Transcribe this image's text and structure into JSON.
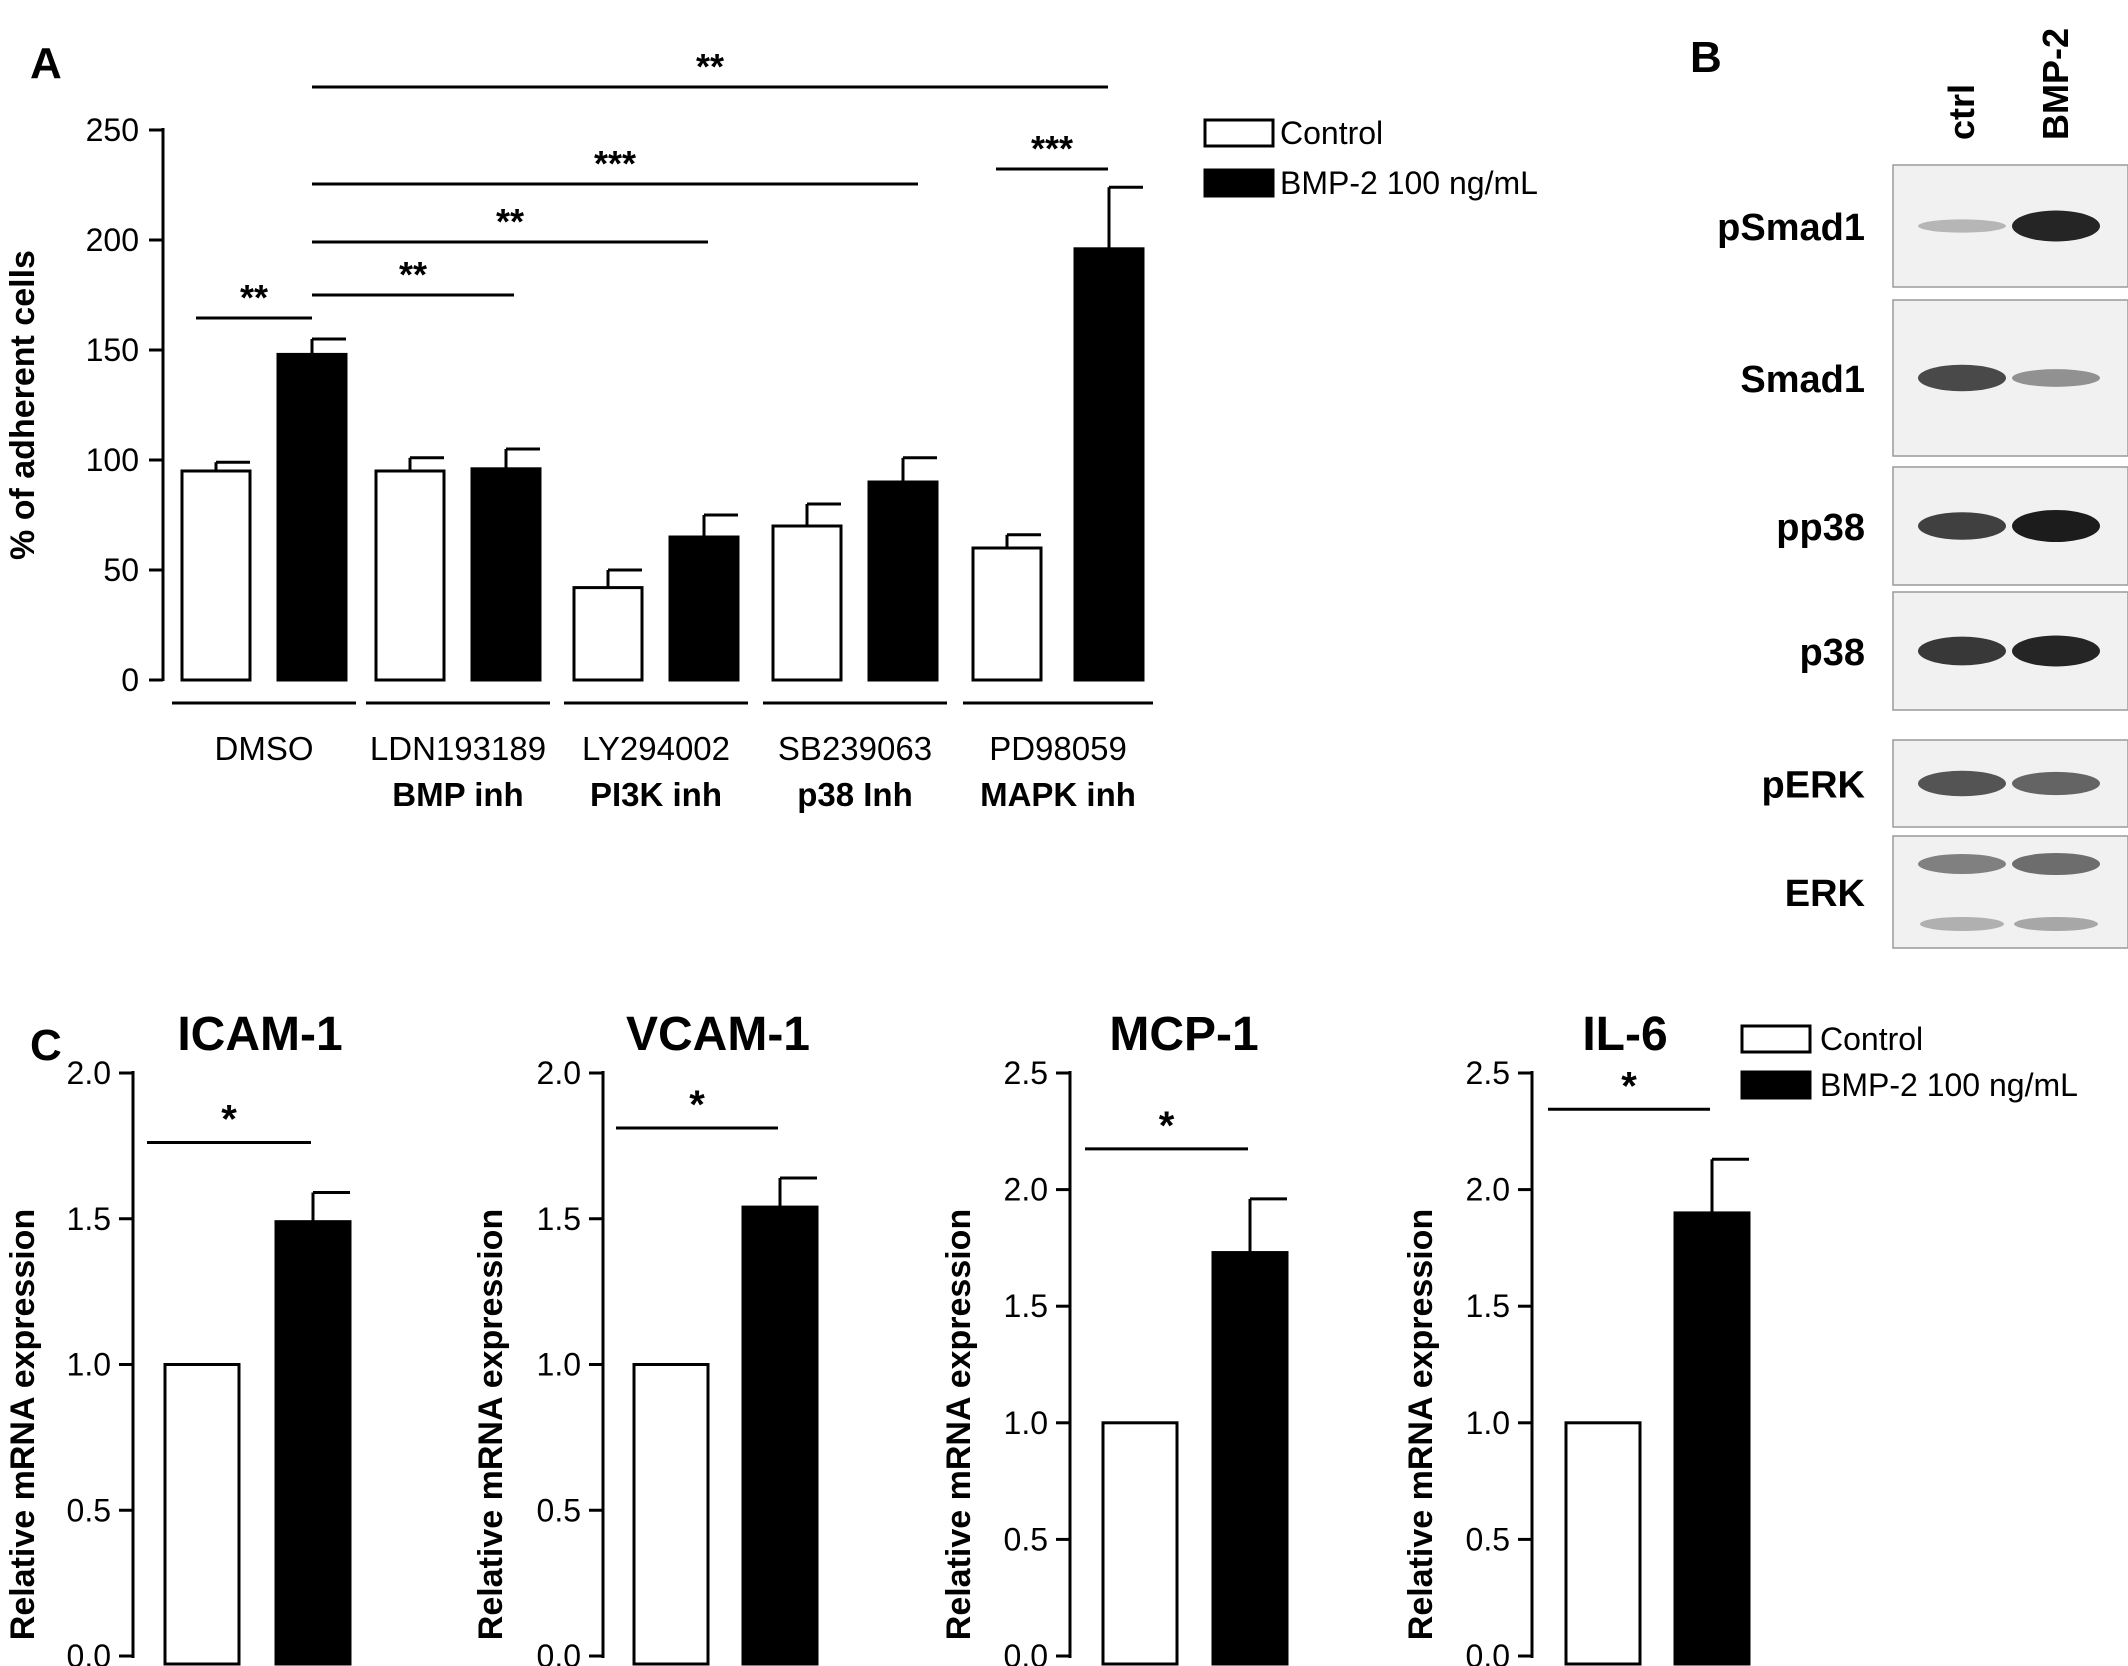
{
  "panel_labels": {
    "a": "A",
    "b": "B",
    "c": "C"
  },
  "colors": {
    "control": "#ffffff",
    "bmp2": "#000000",
    "blot_background": "#f1f1f1",
    "band": "#1c1c1c"
  },
  "legend": {
    "control": "Control",
    "bmp2": "BMP-2 100 ng/mL"
  },
  "chart_data": [
    {
      "id": "A",
      "type": "bar",
      "title": "",
      "ylabel": "% of adherent cells",
      "ylim": [
        0,
        250
      ],
      "yticks": [
        0,
        50,
        100,
        150,
        200,
        250
      ],
      "groups": [
        {
          "name": "DMSO",
          "sub": ""
        },
        {
          "name": "LDN193189",
          "sub": "BMP inh"
        },
        {
          "name": "LY294002",
          "sub": "PI3K inh"
        },
        {
          "name": "SB239063",
          "sub": "p38 Inh"
        },
        {
          "name": "PD98059",
          "sub": "MAPK inh"
        }
      ],
      "series": [
        {
          "name": "Control",
          "values": [
            95,
            95,
            42,
            70,
            60
          ],
          "errors": [
            4,
            6,
            8,
            10,
            6
          ]
        },
        {
          "name": "BMP-2 100 ng/mL",
          "values": [
            148,
            96,
            65,
            90,
            196
          ],
          "errors": [
            7,
            9,
            10,
            11,
            28
          ]
        }
      ],
      "significance": [
        {
          "label": "**",
          "from": "DMSO-Control",
          "to": "DMSO-BMP-2"
        },
        {
          "label": "**",
          "from": "DMSO-BMP-2",
          "to": "LDN193189-BMP-2"
        },
        {
          "label": "**",
          "from": "DMSO-BMP-2",
          "to": "LY294002-BMP-2"
        },
        {
          "label": "***",
          "from": "DMSO-BMP-2",
          "to": "SB239063-BMP-2"
        },
        {
          "label": "**",
          "from": "DMSO-BMP-2",
          "to": "PD98059-BMP-2"
        },
        {
          "label": "***",
          "from": "PD98059-Control",
          "to": "PD98059-BMP-2"
        }
      ]
    },
    {
      "id": "C1",
      "type": "bar",
      "title": "ICAM-1",
      "ylabel": "Relative mRNA expression",
      "ylim": [
        0,
        2.0
      ],
      "yticks": [
        "0.0",
        "0.5",
        "1.0",
        "1.5",
        "2.0"
      ],
      "series": [
        {
          "name": "Control",
          "values": [
            1.0
          ],
          "errors": [
            0
          ]
        },
        {
          "name": "BMP-2 100 ng/mL",
          "values": [
            1.49
          ],
          "errors": [
            0.1
          ]
        }
      ],
      "significance": [
        {
          "label": "*"
        }
      ]
    },
    {
      "id": "C2",
      "type": "bar",
      "title": "VCAM-1",
      "ylabel": "Relative mRNA expression",
      "ylim": [
        0,
        2.0
      ],
      "yticks": [
        "0.0",
        "0.5",
        "1.0",
        "1.5",
        "2.0"
      ],
      "series": [
        {
          "name": "Control",
          "values": [
            1.0
          ],
          "errors": [
            0
          ]
        },
        {
          "name": "BMP-2 100 ng/mL",
          "values": [
            1.54
          ],
          "errors": [
            0.1
          ]
        }
      ],
      "significance": [
        {
          "label": "*"
        }
      ]
    },
    {
      "id": "C3",
      "type": "bar",
      "title": "MCP-1",
      "ylabel": "Relative mRNA expression",
      "ylim": [
        0,
        2.5
      ],
      "yticks": [
        "0.0",
        "0.5",
        "1.0",
        "1.5",
        "2.0",
        "2.5"
      ],
      "series": [
        {
          "name": "Control",
          "values": [
            1.0
          ],
          "errors": [
            0
          ]
        },
        {
          "name": "BMP-2 100 ng/mL",
          "values": [
            1.73
          ],
          "errors": [
            0.23
          ]
        }
      ],
      "significance": [
        {
          "label": "*"
        }
      ]
    },
    {
      "id": "C4",
      "type": "bar",
      "title": "IL-6",
      "ylabel": "Relative mRNA expression",
      "ylim": [
        0,
        2.5
      ],
      "yticks": [
        "0.0",
        "0.5",
        "1.0",
        "1.5",
        "2.0",
        "2.5"
      ],
      "series": [
        {
          "name": "Control",
          "values": [
            1.0
          ],
          "errors": [
            0
          ]
        },
        {
          "name": "BMP-2 100 ng/mL",
          "values": [
            1.9
          ],
          "errors": [
            0.23
          ]
        }
      ],
      "significance": [
        {
          "label": "*"
        }
      ]
    }
  ],
  "blot": {
    "lanes": [
      "ctrl",
      "BMP-2"
    ],
    "rows": [
      {
        "label": "pSmad1",
        "band_intensity": [
          0.15,
          0.95
        ]
      },
      {
        "label": "Smad1",
        "band_intensity": [
          0.75,
          0.35
        ]
      },
      {
        "label": "pp38",
        "band_intensity": [
          0.8,
          1.0
        ]
      },
      {
        "label": "p38",
        "band_intensity": [
          0.85,
          0.95
        ]
      },
      {
        "label": "pERK",
        "band_intensity": [
          0.7,
          0.6
        ]
      },
      {
        "label": "ERK",
        "band_intensity": [
          0.45,
          0.55
        ]
      }
    ]
  }
}
